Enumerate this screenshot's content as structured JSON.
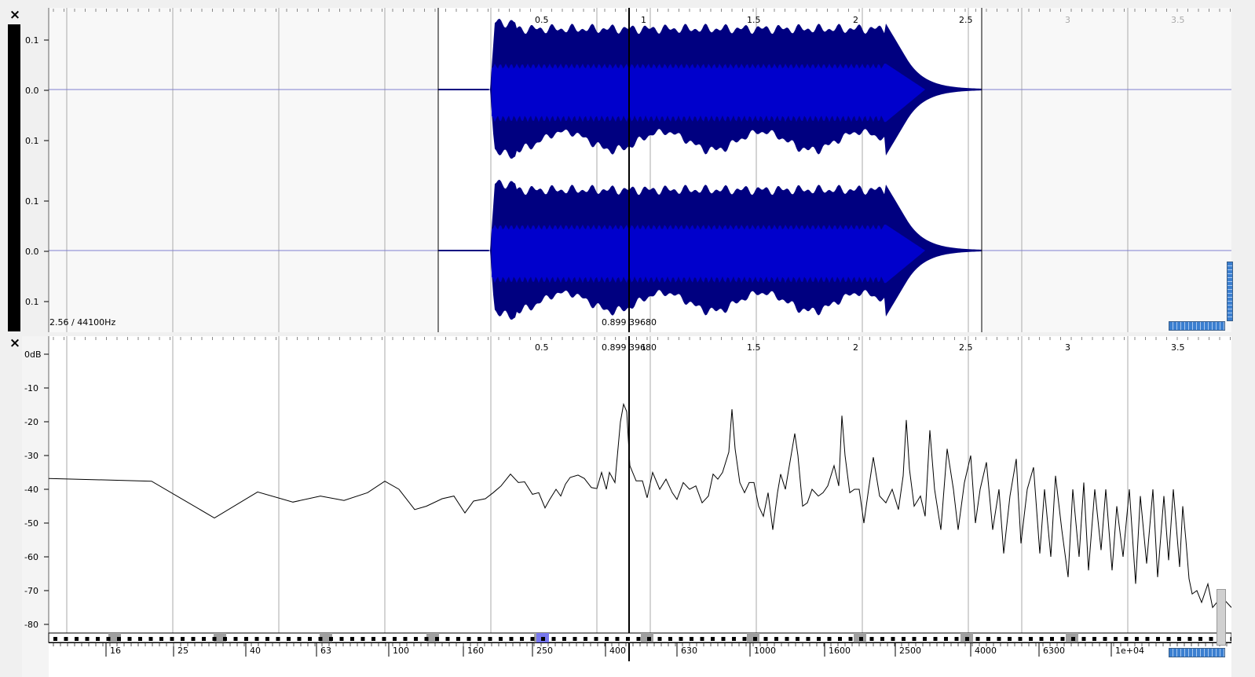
{
  "waveform": {
    "close_icon": "×",
    "amplitude_labels": [
      "0.1",
      "0.0",
      "0.1",
      "0.1",
      "0.0",
      "0.1"
    ],
    "time_labels": [
      "0.5",
      "1",
      "1.5",
      "2",
      "2.5",
      "3",
      "3.5"
    ],
    "duration_rate": "2.56 / 44100Hz",
    "cursor_readout": "0.899  39680",
    "duration_seconds": 2.56,
    "sample_rate_hz": 44100,
    "cursor_seconds": 0.899,
    "colors": {
      "wave_dark": "#000080",
      "wave_light": "#0000cc",
      "background": "#f8f8f8",
      "outside": "#f0f0f0"
    }
  },
  "spectrum": {
    "close_icon": "×",
    "db_labels": [
      "0dB",
      "-10",
      "-20",
      "-30",
      "-40",
      "-50",
      "-60",
      "-70",
      "-80"
    ],
    "time_labels": [
      "0.5",
      "1",
      "1.5",
      "2",
      "2.5",
      "3",
      "3.5"
    ],
    "cursor_readout": "0.899  39680",
    "freq_labels": [
      "16",
      "25",
      "40",
      "63",
      "100",
      "160",
      "250",
      "400",
      "630",
      "1000",
      "1600",
      "2500",
      "4000",
      "6300",
      "1e+04"
    ],
    "selected_freq_label": "250",
    "colors": {
      "curve": "#000000",
      "highlight_cell": "#7777ee",
      "gray_cell": "#a0a0a0"
    }
  }
}
